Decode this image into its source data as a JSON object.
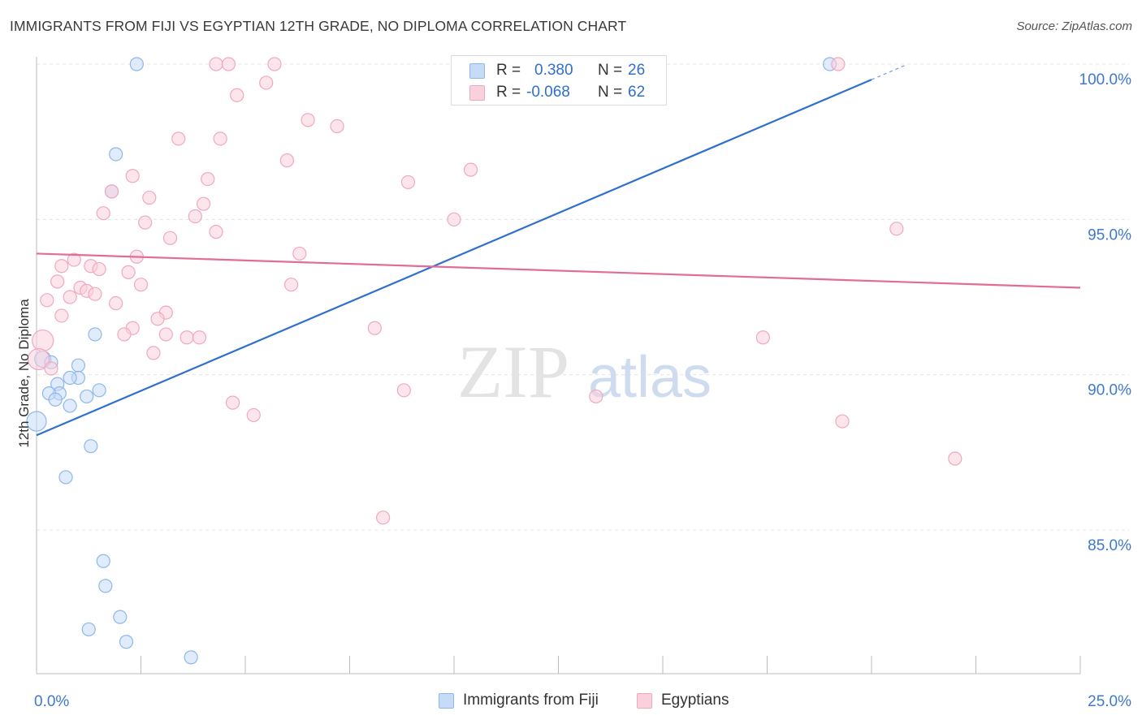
{
  "title": "IMMIGRANTS FROM FIJI VS EGYPTIAN 12TH GRADE, NO DIPLOMA CORRELATION CHART",
  "source": "Source: ZipAtlas.com",
  "watermark": {
    "zip": "ZIP",
    "atlas": "atlas"
  },
  "legend": {
    "r_label": "R =",
    "n_label": "N =",
    "series": [
      {
        "r": "0.380",
        "n": "26"
      },
      {
        "r": "-0.068",
        "n": "62"
      }
    ]
  },
  "chart_data": {
    "type": "scatter",
    "title": "IMMIGRANTS FROM FIJI VS EGYPTIAN 12TH GRADE, NO DIPLOMA CORRELATION CHART",
    "xlabel": "",
    "ylabel": "12th Grade, No Diploma",
    "xlim": [
      0,
      25
    ],
    "ylim": [
      80.5,
      100.5
    ],
    "x_tick_labels": [
      {
        "value": 0,
        "label": "0.0%"
      },
      {
        "value": 25,
        "label": "25.0%"
      }
    ],
    "x_minor_ticks": [
      0,
      2.5,
      5,
      7.5,
      10,
      12.5,
      15,
      17.5,
      20,
      22.5,
      25
    ],
    "y_tick_labels": [
      {
        "value": 100,
        "label": "100.0%"
      },
      {
        "value": 95,
        "label": "95.0%"
      },
      {
        "value": 90,
        "label": "90.0%"
      },
      {
        "value": 85,
        "label": "85.0%"
      }
    ],
    "grid": true,
    "legend_position": "top-center",
    "series": [
      {
        "name": "Immigrants from Fiji",
        "color": "#8fb7ea",
        "fill": "#c6dbf7",
        "line_color": "#2f6fcd",
        "r": 0.38,
        "n": 26,
        "trend": {
          "x0": 0,
          "y0": 88.05,
          "x1": 20,
          "y1": 99.5,
          "dashed_to_x": 20.8
        },
        "points": [
          [
            2.4,
            100.0
          ],
          [
            19.0,
            100.0
          ],
          [
            1.9,
            97.1
          ],
          [
            1.8,
            95.9
          ],
          [
            1.4,
            91.3
          ],
          [
            0.15,
            90.5
          ],
          [
            0.35,
            90.4
          ],
          [
            1.0,
            90.3
          ],
          [
            0.5,
            89.7
          ],
          [
            1.0,
            89.9
          ],
          [
            0.8,
            89.9
          ],
          [
            0.55,
            89.4
          ],
          [
            1.5,
            89.5
          ],
          [
            0.3,
            89.4
          ],
          [
            0.45,
            89.2
          ],
          [
            1.2,
            89.3
          ],
          [
            0.8,
            89.0
          ],
          [
            0.0,
            88.5
          ],
          [
            1.3,
            87.7
          ],
          [
            0.7,
            86.7
          ],
          [
            1.6,
            84.0
          ],
          [
            1.65,
            83.2
          ],
          [
            2.0,
            82.2
          ],
          [
            1.25,
            81.8
          ],
          [
            2.15,
            81.4
          ],
          [
            3.7,
            80.9
          ]
        ]
      },
      {
        "name": "Egyptians",
        "color": "#f0a8c0",
        "fill": "#fbd0dd",
        "line_color": "#e26b98",
        "r": -0.068,
        "n": 62,
        "trend": {
          "x0": 0,
          "y0": 93.9,
          "x1": 25,
          "y1": 92.8
        },
        "points": [
          [
            4.3,
            100.0
          ],
          [
            4.6,
            100.0
          ],
          [
            5.7,
            100.0
          ],
          [
            19.2,
            100.0
          ],
          [
            5.5,
            99.4
          ],
          [
            4.8,
            99.0
          ],
          [
            6.5,
            98.2
          ],
          [
            7.2,
            98.0
          ],
          [
            3.4,
            97.6
          ],
          [
            4.4,
            97.6
          ],
          [
            6.0,
            96.9
          ],
          [
            10.4,
            96.6
          ],
          [
            2.3,
            96.4
          ],
          [
            4.1,
            96.3
          ],
          [
            8.9,
            96.2
          ],
          [
            1.8,
            95.9
          ],
          [
            2.7,
            95.7
          ],
          [
            4.0,
            95.5
          ],
          [
            1.6,
            95.2
          ],
          [
            3.8,
            95.1
          ],
          [
            10.0,
            95.0
          ],
          [
            2.6,
            94.9
          ],
          [
            20.6,
            94.7
          ],
          [
            4.3,
            94.6
          ],
          [
            3.2,
            94.4
          ],
          [
            6.3,
            93.9
          ],
          [
            2.4,
            93.8
          ],
          [
            0.9,
            93.7
          ],
          [
            0.6,
            93.5
          ],
          [
            1.3,
            93.5
          ],
          [
            1.5,
            93.4
          ],
          [
            2.2,
            93.3
          ],
          [
            0.5,
            93.0
          ],
          [
            2.5,
            92.9
          ],
          [
            6.1,
            92.9
          ],
          [
            1.05,
            92.8
          ],
          [
            1.2,
            92.7
          ],
          [
            1.4,
            92.6
          ],
          [
            0.8,
            92.5
          ],
          [
            0.25,
            92.4
          ],
          [
            1.9,
            92.3
          ],
          [
            3.1,
            92.0
          ],
          [
            0.6,
            91.9
          ],
          [
            2.9,
            91.8
          ],
          [
            2.3,
            91.5
          ],
          [
            8.1,
            91.5
          ],
          [
            2.1,
            91.3
          ],
          [
            3.1,
            91.3
          ],
          [
            3.6,
            91.2
          ],
          [
            3.9,
            91.2
          ],
          [
            17.4,
            91.2
          ],
          [
            0.15,
            91.1
          ],
          [
            2.8,
            90.7
          ],
          [
            0.05,
            90.5
          ],
          [
            0.35,
            90.2
          ],
          [
            8.8,
            89.5
          ],
          [
            13.4,
            89.3
          ],
          [
            4.7,
            89.1
          ],
          [
            5.2,
            88.7
          ],
          [
            19.3,
            88.5
          ],
          [
            22.0,
            87.3
          ],
          [
            8.3,
            85.4
          ]
        ]
      }
    ]
  }
}
